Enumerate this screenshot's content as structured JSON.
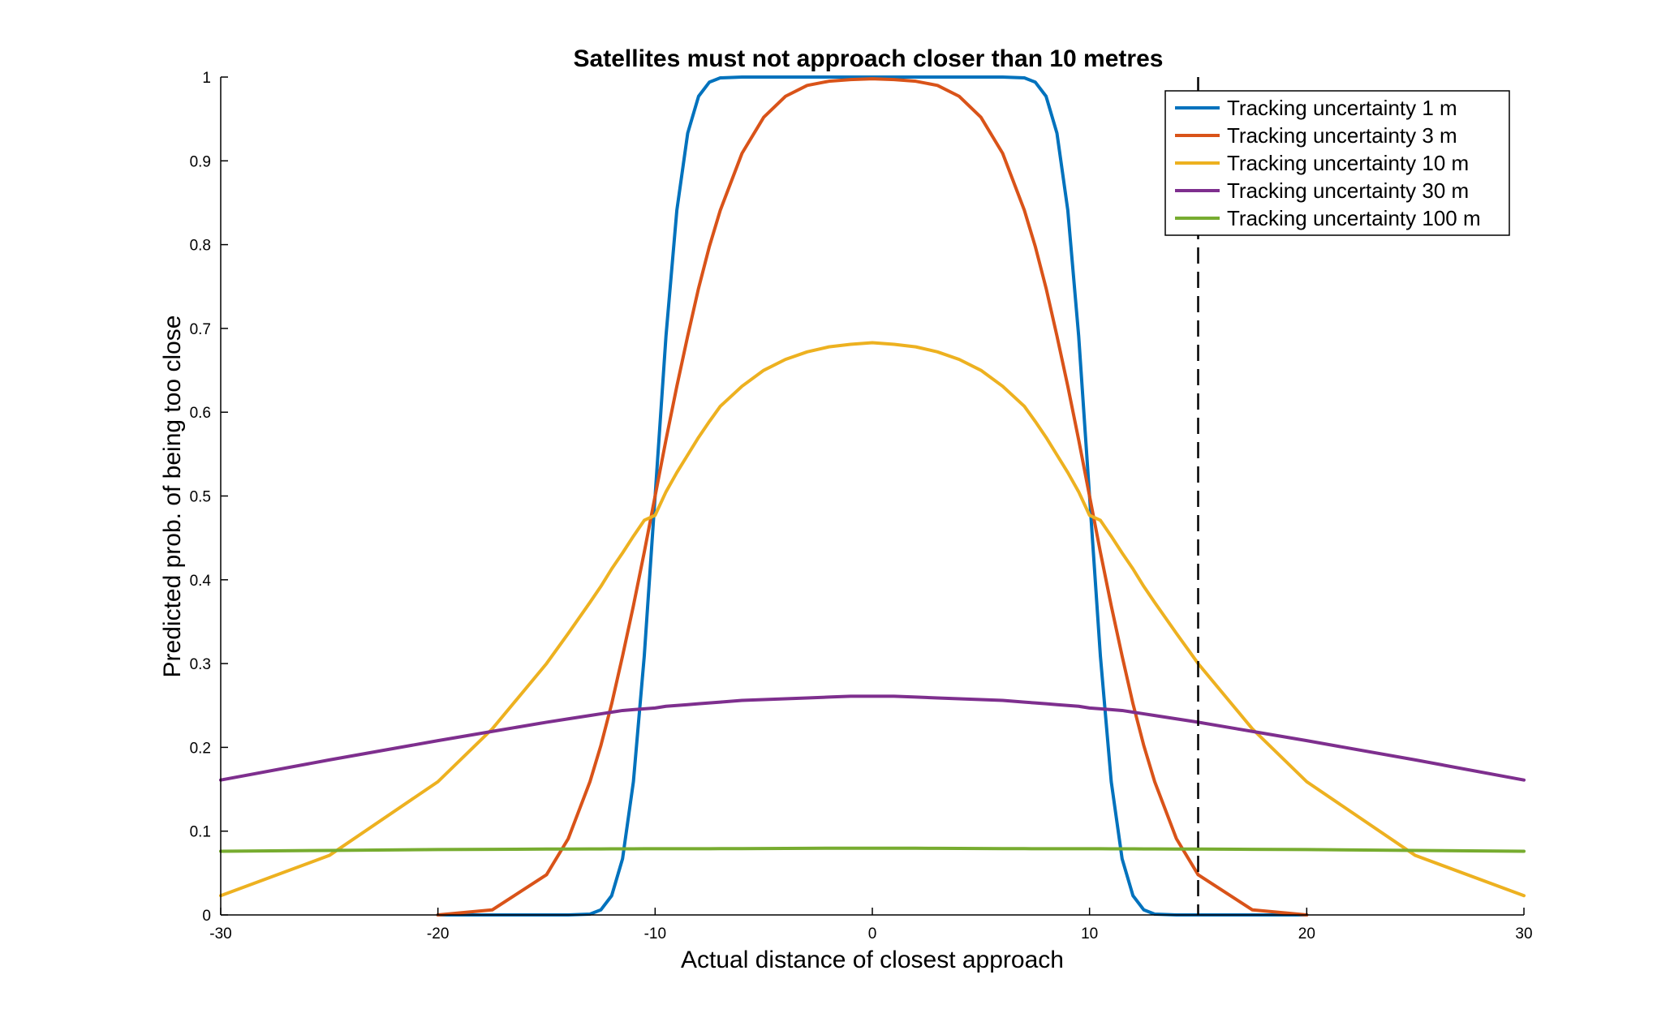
{
  "chart_data": {
    "type": "line",
    "title": "Satellites must not approach closer than 10 metres",
    "xlabel": "Actual distance of closest approach",
    "ylabel": "Predicted prob. of being too close",
    "xlim": [
      -30,
      30
    ],
    "ylim": [
      0,
      1
    ],
    "xticks": [
      -30,
      -20,
      -10,
      0,
      10,
      20,
      30
    ],
    "yticks": [
      0,
      0.1,
      0.2,
      0.3,
      0.4,
      0.5,
      0.6,
      0.7,
      0.8,
      0.9,
      1
    ],
    "grid": false,
    "legend_position": "top-right",
    "threshold_line": {
      "x": 15,
      "style": "dashed",
      "color": "#000000"
    },
    "x": [
      -30,
      -25,
      -20,
      -17.5,
      -15,
      -14,
      -13,
      -12.5,
      -12,
      -11.5,
      -11,
      -10.5,
      -10,
      -9.5,
      -9,
      -8.5,
      -8,
      -7.5,
      -7,
      -6,
      -5,
      -4,
      -3,
      -2,
      -1,
      0,
      1,
      2,
      3,
      4,
      5,
      6,
      7,
      7.5,
      8,
      8.5,
      9,
      9.5,
      10,
      10.5,
      11,
      11.5,
      12,
      12.5,
      13,
      14,
      15,
      17.5,
      20,
      25,
      30
    ],
    "series": [
      {
        "name": "Tracking uncertainty 1 m",
        "color": "#0072BD",
        "x_range": [
          -20,
          20
        ],
        "values": [
          null,
          null,
          0,
          0,
          0,
          0,
          0.001,
          0.006,
          0.023,
          0.067,
          0.159,
          0.309,
          0.5,
          0.691,
          0.841,
          0.933,
          0.977,
          0.994,
          0.999,
          1,
          1,
          1,
          1,
          1,
          1,
          1,
          1,
          1,
          1,
          1,
          1,
          1,
          0.999,
          0.994,
          0.977,
          0.933,
          0.841,
          0.691,
          0.5,
          0.309,
          0.159,
          0.067,
          0.023,
          0.006,
          0.001,
          0,
          0,
          0,
          0,
          null,
          null
        ]
      },
      {
        "name": "Tracking uncertainty 3 m",
        "color": "#D95319",
        "x_range": [
          -20,
          20
        ],
        "values": [
          null,
          null,
          0.0,
          0.006,
          0.048,
          0.091,
          0.159,
          0.202,
          0.252,
          0.309,
          0.369,
          0.433,
          0.5,
          0.567,
          0.631,
          0.691,
          0.748,
          0.798,
          0.841,
          0.909,
          0.952,
          0.977,
          0.99,
          0.995,
          0.997,
          0.998,
          0.997,
          0.995,
          0.99,
          0.977,
          0.952,
          0.909,
          0.841,
          0.798,
          0.748,
          0.691,
          0.631,
          0.567,
          0.5,
          0.433,
          0.369,
          0.309,
          0.252,
          0.202,
          0.159,
          0.091,
          0.048,
          0.006,
          0.0,
          null,
          null
        ]
      },
      {
        "name": "Tracking uncertainty 10 m",
        "color": "#EDB120",
        "x_range": [
          -30,
          30
        ],
        "values": [
          0.023,
          0.071,
          0.159,
          0.222,
          0.3,
          0.336,
          0.373,
          0.392,
          0.413,
          0.432,
          0.452,
          0.471,
          0.477,
          0.505,
          0.528,
          0.549,
          0.57,
          0.589,
          0.607,
          0.631,
          0.65,
          0.663,
          0.672,
          0.678,
          0.681,
          0.683,
          0.681,
          0.678,
          0.672,
          0.663,
          0.65,
          0.631,
          0.607,
          0.589,
          0.57,
          0.549,
          0.528,
          0.505,
          0.477,
          0.471,
          0.452,
          0.432,
          0.413,
          0.392,
          0.373,
          0.336,
          0.3,
          0.222,
          0.159,
          0.071,
          0.023
        ]
      },
      {
        "name": "Tracking uncertainty 30 m",
        "color": "#7E2F8E",
        "x_range": [
          -30,
          30
        ],
        "values": [
          0.161,
          0.185,
          0.208,
          0.219,
          0.23,
          0.234,
          0.238,
          0.24,
          0.242,
          0.244,
          0.245,
          0.246,
          0.247,
          0.249,
          0.25,
          0.251,
          0.252,
          0.253,
          0.254,
          0.256,
          0.257,
          0.258,
          0.259,
          0.26,
          0.261,
          0.261,
          0.261,
          0.26,
          0.259,
          0.258,
          0.257,
          0.256,
          0.254,
          0.253,
          0.252,
          0.251,
          0.25,
          0.249,
          0.247,
          0.246,
          0.245,
          0.244,
          0.242,
          0.24,
          0.238,
          0.234,
          0.23,
          0.219,
          0.208,
          0.185,
          0.161
        ]
      },
      {
        "name": "Tracking uncertainty 100 m",
        "color": "#77AC30",
        "x_range": [
          -30,
          30
        ],
        "values": [
          0.076,
          0.077,
          0.078,
          0.0783,
          0.0786,
          0.0787,
          0.0788,
          0.0788,
          0.0789,
          0.0789,
          0.0789,
          0.079,
          0.079,
          0.079,
          0.079,
          0.079,
          0.079,
          0.079,
          0.0791,
          0.0792,
          0.0793,
          0.0794,
          0.0795,
          0.0796,
          0.0796,
          0.0796,
          0.0796,
          0.0796,
          0.0795,
          0.0794,
          0.0793,
          0.0792,
          0.0791,
          0.079,
          0.079,
          0.079,
          0.079,
          0.079,
          0.079,
          0.079,
          0.0789,
          0.0789,
          0.0789,
          0.0788,
          0.0788,
          0.0787,
          0.0786,
          0.0783,
          0.078,
          0.077,
          0.076
        ]
      }
    ]
  }
}
